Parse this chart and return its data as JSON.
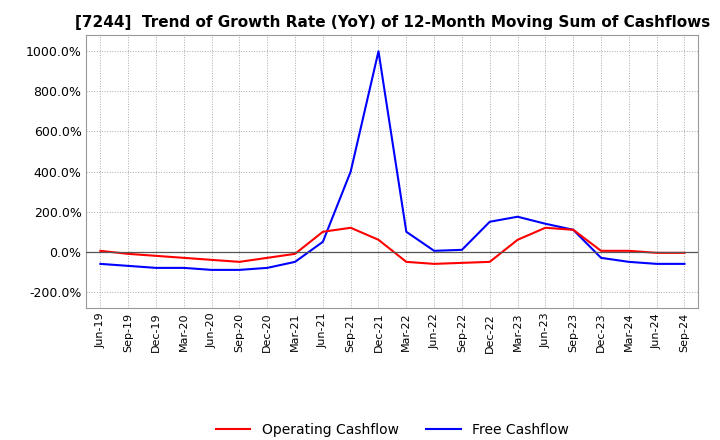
{
  "title": "[7244]  Trend of Growth Rate (YoY) of 12-Month Moving Sum of Cashflows",
  "title_fontsize": 11,
  "ylim": [
    -280,
    1080
  ],
  "yticks": [
    -200,
    0,
    200,
    400,
    600,
    800,
    1000
  ],
  "ytick_labels": [
    "-200.0%",
    "0.0%",
    "200.0%",
    "400.0%",
    "600.0%",
    "800.0%",
    "1000.0%"
  ],
  "background_color": "#ffffff",
  "plot_bg_color": "#ffffff",
  "grid_color": "#aaaaaa",
  "operating_color": "#ff0000",
  "free_color": "#0000ff",
  "legend_labels": [
    "Operating Cashflow",
    "Free Cashflow"
  ],
  "x_labels": [
    "Jun-19",
    "Sep-19",
    "Dec-19",
    "Mar-20",
    "Jun-20",
    "Sep-20",
    "Dec-20",
    "Mar-21",
    "Jun-21",
    "Sep-21",
    "Dec-21",
    "Mar-22",
    "Jun-22",
    "Sep-22",
    "Dec-22",
    "Mar-23",
    "Jun-23",
    "Sep-23",
    "Dec-23",
    "Mar-24",
    "Jun-24",
    "Sep-24"
  ],
  "operating_cashflow": [
    5,
    -10,
    -20,
    -30,
    -40,
    -50,
    -30,
    -10,
    100,
    120,
    60,
    -50,
    -60,
    -55,
    -50,
    60,
    120,
    110,
    5,
    5,
    -5,
    -5
  ],
  "free_cashflow": [
    -60,
    -70,
    -80,
    -80,
    -90,
    -90,
    -80,
    -50,
    50,
    400,
    1000,
    100,
    5,
    10,
    150,
    175,
    140,
    110,
    -30,
    -50,
    -60,
    -60
  ]
}
